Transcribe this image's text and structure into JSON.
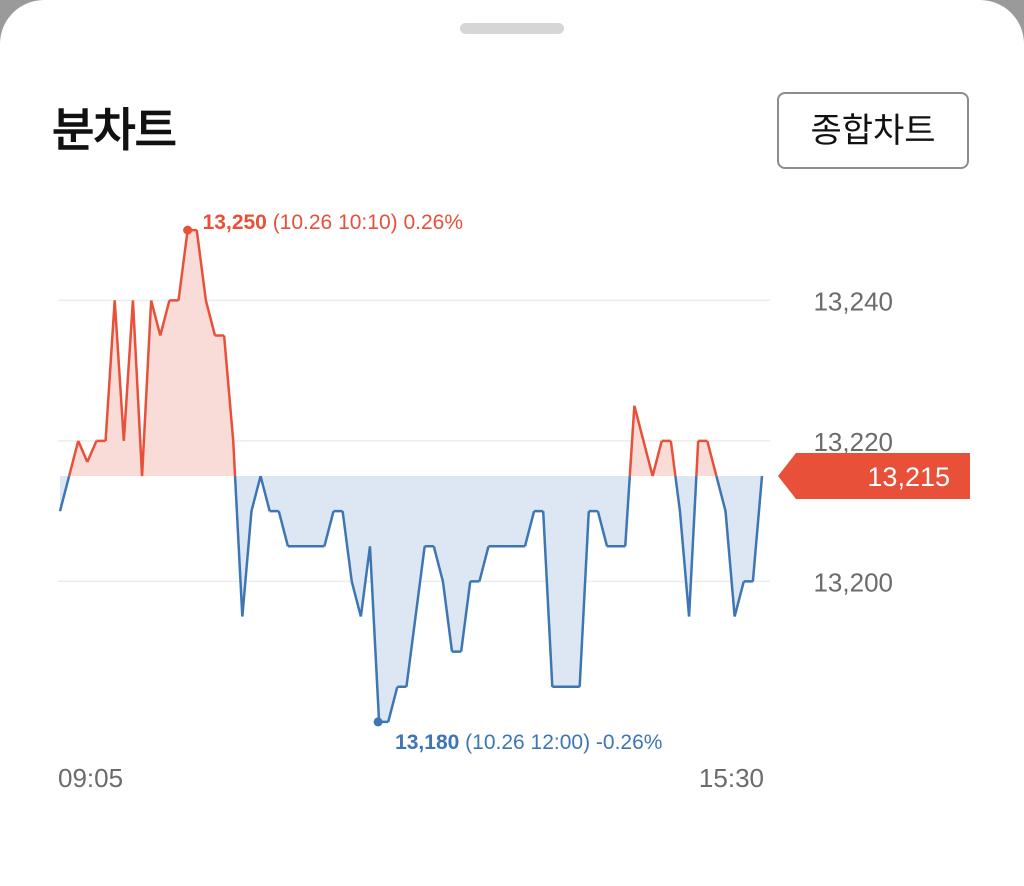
{
  "panel": {
    "title": "분차트",
    "button_label": "종합차트"
  },
  "colors": {
    "up": "#e8503a",
    "down": "#3d76b3",
    "up_fill": "#f9dcd8",
    "down_fill": "#dde7f3"
  },
  "chart_data": {
    "type": "line",
    "title": "분차트",
    "xlabel": "",
    "ylabel": "",
    "x_start_label": "09:05",
    "x_end_label": "15:30",
    "ylim": [
      13176,
      13255
    ],
    "baseline": 13215,
    "y_ticks": [
      {
        "value": 13240,
        "label": "13,240"
      },
      {
        "value": 13220,
        "label": "13,220"
      },
      {
        "value": 13200,
        "label": "13,200"
      }
    ],
    "current": {
      "value": 13215,
      "label": "13,215"
    },
    "high": {
      "value": 13250,
      "value_label": "13,250",
      "detail": "(10.26 10:10) 0.26%"
    },
    "low": {
      "value": 13180,
      "value_label": "13,180",
      "detail": "(10.26 12:00) -0.26%"
    },
    "values": [
      13210,
      13215,
      13220,
      13217,
      13220,
      13220,
      13240,
      13220,
      13240,
      13215,
      13240,
      13235,
      13240,
      13240,
      13250,
      13250,
      13240,
      13235,
      13235,
      13220,
      13195,
      13210,
      13215,
      13210,
      13210,
      13205,
      13205,
      13205,
      13205,
      13205,
      13210,
      13210,
      13200,
      13195,
      13205,
      13180,
      13180,
      13185,
      13185,
      13195,
      13205,
      13205,
      13200,
      13190,
      13190,
      13200,
      13200,
      13205,
      13205,
      13205,
      13205,
      13205,
      13210,
      13210,
      13185,
      13185,
      13185,
      13185,
      13210,
      13210,
      13205,
      13205,
      13205,
      13225,
      13220,
      13215,
      13220,
      13220,
      13210,
      13195,
      13220,
      13220,
      13215,
      13210,
      13195,
      13200,
      13200,
      13215
    ]
  }
}
